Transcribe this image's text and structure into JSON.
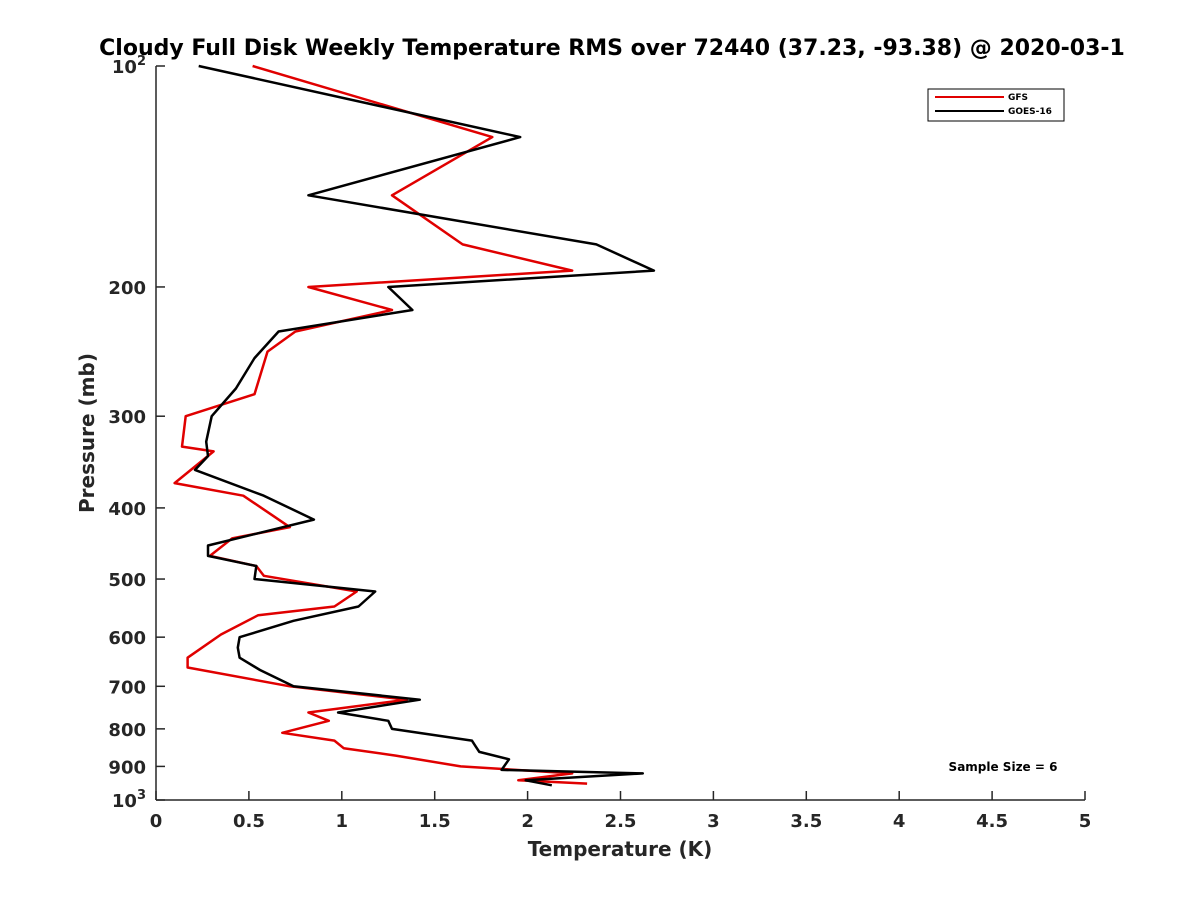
{
  "chart_data": {
    "type": "line",
    "title": "Cloudy Full Disk Weekly Temperature RMS over 72440 (37.23, -93.38) @ 2020-03-1",
    "xlabel": "Temperature (K)",
    "ylabel": "Pressure (mb)",
    "xlim": [
      0,
      5
    ],
    "ylim": [
      100,
      1000
    ],
    "y_scale": "log",
    "y_reversed": true,
    "x_ticks": [
      0,
      0.5,
      1,
      1.5,
      2,
      2.5,
      3,
      3.5,
      4,
      4.5,
      5
    ],
    "x_tick_labels": [
      "0",
      "0.5",
      "1",
      "1.5",
      "2",
      "2.5",
      "3",
      "3.5",
      "4",
      "4.5",
      "5"
    ],
    "y_ticks": [
      100,
      200,
      300,
      400,
      500,
      600,
      700,
      800,
      900,
      1000
    ],
    "y_tick_labels": [
      {
        "base": "10",
        "exp": "2"
      },
      {
        "base": "200",
        "exp": ""
      },
      {
        "base": "300",
        "exp": ""
      },
      {
        "base": "400",
        "exp": ""
      },
      {
        "base": "500",
        "exp": ""
      },
      {
        "base": "600",
        "exp": ""
      },
      {
        "base": "700",
        "exp": ""
      },
      {
        "base": "800",
        "exp": ""
      },
      {
        "base": "900",
        "exp": ""
      },
      {
        "base": "10",
        "exp": "3"
      }
    ],
    "legend_position": "top-right",
    "annotation": "Sample Size = 6",
    "series": [
      {
        "name": "GFS",
        "color": "#e00000",
        "points": [
          [
            0.52,
            100
          ],
          [
            1.81,
            125
          ],
          [
            1.27,
            150
          ],
          [
            1.65,
            175
          ],
          [
            2.24,
            190
          ],
          [
            0.82,
            200
          ],
          [
            1.27,
            215
          ],
          [
            0.75,
            230
          ],
          [
            0.6,
            245
          ],
          [
            0.53,
            280
          ],
          [
            0.16,
            300
          ],
          [
            0.14,
            330
          ],
          [
            0.31,
            335
          ],
          [
            0.1,
            370
          ],
          [
            0.47,
            385
          ],
          [
            0.63,
            410
          ],
          [
            0.72,
            425
          ],
          [
            0.41,
            440
          ],
          [
            0.29,
            465
          ],
          [
            0.54,
            480
          ],
          [
            0.58,
            495
          ],
          [
            1.08,
            520
          ],
          [
            0.96,
            545
          ],
          [
            0.55,
            560
          ],
          [
            0.35,
            595
          ],
          [
            0.17,
            640
          ],
          [
            0.17,
            660
          ],
          [
            0.72,
            700
          ],
          [
            1.35,
            730
          ],
          [
            0.82,
            760
          ],
          [
            0.93,
            780
          ],
          [
            0.68,
            810
          ],
          [
            0.96,
            830
          ],
          [
            1.01,
            850
          ],
          [
            1.29,
            870
          ],
          [
            1.64,
            900
          ],
          [
            2.24,
            920
          ],
          [
            1.95,
            940
          ],
          [
            2.32,
            950
          ]
        ]
      },
      {
        "name": "GOES-16",
        "color": "#000000",
        "points": [
          [
            0.23,
            100
          ],
          [
            1.96,
            125
          ],
          [
            0.82,
            150
          ],
          [
            2.37,
            175
          ],
          [
            2.68,
            190
          ],
          [
            1.25,
            200
          ],
          [
            1.38,
            215
          ],
          [
            0.66,
            230
          ],
          [
            0.53,
            250
          ],
          [
            0.43,
            275
          ],
          [
            0.3,
            300
          ],
          [
            0.27,
            325
          ],
          [
            0.28,
            340
          ],
          [
            0.21,
            355
          ],
          [
            0.58,
            385
          ],
          [
            0.85,
            415
          ],
          [
            0.28,
            450
          ],
          [
            0.28,
            465
          ],
          [
            0.54,
            480
          ],
          [
            0.53,
            500
          ],
          [
            1.18,
            520
          ],
          [
            1.09,
            545
          ],
          [
            0.74,
            570
          ],
          [
            0.45,
            600
          ],
          [
            0.44,
            620
          ],
          [
            0.45,
            640
          ],
          [
            0.56,
            665
          ],
          [
            0.74,
            700
          ],
          [
            1.42,
            730
          ],
          [
            0.98,
            760
          ],
          [
            1.25,
            780
          ],
          [
            1.27,
            800
          ],
          [
            1.7,
            830
          ],
          [
            1.72,
            845
          ],
          [
            1.74,
            860
          ],
          [
            1.9,
            880
          ],
          [
            1.86,
            910
          ],
          [
            2.62,
            920
          ],
          [
            1.99,
            940
          ],
          [
            2.13,
            955
          ]
        ]
      }
    ]
  }
}
